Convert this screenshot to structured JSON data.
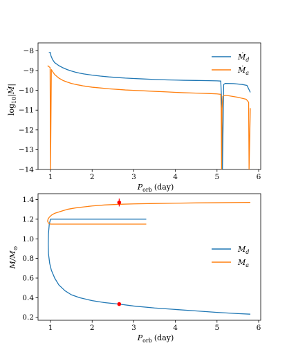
{
  "colors": {
    "Md": "#1f77b4",
    "Ma": "#ff7f0e",
    "marker": "#ff0000"
  },
  "chart_data": [
    {
      "type": "line",
      "xlabel_main": "P",
      "xlabel_sub": "orb",
      "xlabel_unit": "(day)",
      "ylabel_main": "log",
      "ylabel_sub": "10",
      "ylabel_expr": "|Ṁ|",
      "xlim": [
        0.7,
        6.05
      ],
      "ylim": [
        -14,
        -7.6
      ],
      "xticks": [
        1,
        2,
        3,
        4,
        5,
        6
      ],
      "xtick_labels": [
        "1",
        "2",
        "3",
        "4",
        "5",
        "6"
      ],
      "yticks": [
        -14,
        -13,
        -12,
        -11,
        -10,
        -9,
        -8
      ],
      "ytick_labels": [
        "−14",
        "−13",
        "−12",
        "−11",
        "−10",
        "−9",
        "−8"
      ],
      "grid": false,
      "legend_position": "upper-right",
      "series": [
        {
          "key": "Md",
          "name": "Ṁd",
          "name_main": "Ṁ",
          "name_sub": "d",
          "x": [
            0.96,
            0.99,
            1.0,
            1.01,
            1.05,
            1.1,
            1.2,
            1.3,
            1.4,
            1.5,
            1.6,
            1.7,
            1.8,
            1.9,
            2.0,
            2.2,
            2.4,
            2.6,
            2.8,
            3.0,
            3.2,
            3.5,
            3.8,
            4.0,
            4.2,
            4.5,
            4.8,
            5.0,
            5.09,
            5.1,
            5.12,
            5.13,
            5.16,
            5.2,
            5.4,
            5.6,
            5.72,
            5.8
          ],
          "y": [
            -8.1,
            -8.08,
            -8.1,
            -8.25,
            -8.45,
            -8.6,
            -8.75,
            -8.86,
            -8.95,
            -9.02,
            -9.08,
            -9.13,
            -9.17,
            -9.2,
            -9.23,
            -9.28,
            -9.32,
            -9.35,
            -9.38,
            -9.4,
            -9.42,
            -9.45,
            -9.47,
            -9.48,
            -9.49,
            -9.5,
            -9.51,
            -9.52,
            -9.53,
            -10.0,
            -11.0,
            -14.0,
            -9.7,
            -9.65,
            -9.66,
            -9.7,
            -9.75,
            -10.1
          ]
        },
        {
          "key": "Ma",
          "name": "Ṁa",
          "name_main": "Ṁ",
          "name_sub": "a",
          "x": [
            0.93,
            0.96,
            0.99,
            1.0,
            1.02,
            1.05,
            1.1,
            1.2,
            1.3,
            1.4,
            1.5,
            1.6,
            1.7,
            1.8,
            1.9,
            2.0,
            2.2,
            2.4,
            2.6,
            2.8,
            3.0,
            3.2,
            3.5,
            3.8,
            4.0,
            4.2,
            4.5,
            4.8,
            5.0,
            5.09,
            5.1,
            5.11,
            5.12,
            5.14,
            5.16,
            5.2,
            5.3,
            5.5,
            5.7,
            5.76,
            5.77,
            5.8
          ],
          "y": [
            -8.75,
            -8.8,
            -8.85,
            -14.0,
            -8.95,
            -9.05,
            -9.2,
            -9.38,
            -9.5,
            -9.58,
            -9.65,
            -9.7,
            -9.74,
            -9.78,
            -9.81,
            -9.84,
            -9.88,
            -9.92,
            -9.95,
            -9.98,
            -10.0,
            -10.02,
            -10.05,
            -10.08,
            -10.1,
            -10.12,
            -10.14,
            -10.16,
            -10.18,
            -10.2,
            -11.0,
            -14.0,
            -11.0,
            -10.3,
            -10.27,
            -10.25,
            -10.28,
            -10.35,
            -10.45,
            -10.6,
            -14.0,
            -10.9
          ]
        }
      ]
    },
    {
      "type": "line",
      "xlabel_main": "P",
      "xlabel_sub": "orb",
      "xlabel_unit": "(day)",
      "ylabel_main": "M/M",
      "ylabel_sub": "⊙",
      "xlim": [
        0.7,
        6.05
      ],
      "ylim": [
        0.17,
        1.46
      ],
      "xticks": [
        1,
        2,
        3,
        4,
        5,
        6
      ],
      "xtick_labels": [
        "1",
        "2",
        "3",
        "4",
        "5",
        "6"
      ],
      "yticks": [
        0.2,
        0.4,
        0.6,
        0.8,
        1.0,
        1.2,
        1.4
      ],
      "ytick_labels": [
        "0.2",
        "0.4",
        "0.6",
        "0.8",
        "1.0",
        "1.2",
        "1.4"
      ],
      "grid": false,
      "legend_position": "center-right",
      "series": [
        {
          "key": "Md",
          "name": "Md",
          "name_main": "M",
          "name_sub": "d",
          "x": [
            3.3,
            1.0,
            0.97,
            0.95,
            0.945,
            0.95,
            0.98,
            1.02,
            1.1,
            1.2,
            1.35,
            1.5,
            1.7,
            2.0,
            2.3,
            2.65,
            3.0,
            3.5,
            4.0,
            4.5,
            5.0,
            5.5,
            5.8
          ],
          "y": [
            1.2,
            1.2,
            1.15,
            1.05,
            0.95,
            0.85,
            0.75,
            0.68,
            0.6,
            0.53,
            0.47,
            0.43,
            0.4,
            0.37,
            0.35,
            0.335,
            0.315,
            0.295,
            0.28,
            0.265,
            0.25,
            0.238,
            0.232
          ]
        },
        {
          "key": "Ma",
          "name": "Ma",
          "name_main": "M",
          "name_sub": "a",
          "x": [
            3.3,
            1.0,
            0.95,
            0.93,
            0.94,
            0.97,
            1.02,
            1.1,
            1.25,
            1.4,
            1.6,
            1.8,
            2.0,
            2.3,
            2.65,
            3.0,
            3.5,
            4.0,
            4.5,
            5.0,
            5.5,
            5.8
          ],
          "y": [
            1.15,
            1.15,
            1.16,
            1.18,
            1.2,
            1.22,
            1.24,
            1.26,
            1.28,
            1.3,
            1.315,
            1.325,
            1.335,
            1.345,
            1.352,
            1.356,
            1.36,
            1.363,
            1.366,
            1.368,
            1.37,
            1.371
          ]
        }
      ],
      "points": [
        {
          "x": 2.65,
          "y": 1.37,
          "yerr": 0.04
        },
        {
          "x": 2.65,
          "y": 0.335,
          "yerr": 0
        }
      ]
    }
  ]
}
